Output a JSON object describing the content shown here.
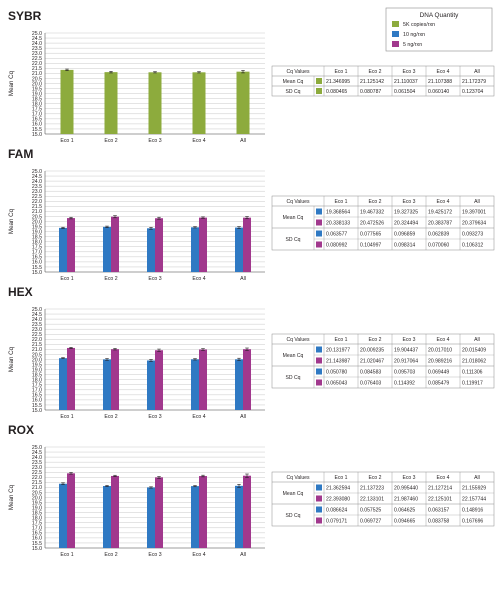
{
  "colors": {
    "sybr": "#8dab3d",
    "ng10": "#2f79c3",
    "ng5": "#a1388d",
    "grid": "#c9c9c9",
    "border": "#8c8c8c"
  },
  "legend": {
    "title": "DNA Quantity",
    "items": [
      {
        "label": "5K copies/rxn",
        "color": "#8dab3d"
      },
      {
        "label": "10 ng/rxn",
        "color": "#2f79c3"
      },
      {
        "label": "5 ng/rxn",
        "color": "#a1388d"
      }
    ]
  },
  "chart_data": [
    {
      "type": "bar",
      "title": "SYBR",
      "ylabel": "Mean Cq",
      "xlabel": "",
      "categories": [
        "Eco 1",
        "Eco 2",
        "Eco 3",
        "Eco 4",
        "All"
      ],
      "ylim": [
        15.0,
        25.0
      ],
      "yticks": [
        "15.0",
        "15.5",
        "16.0",
        "16.5",
        "17.0",
        "17.5",
        "18.0",
        "18.5",
        "19.0",
        "19.5",
        "20.0",
        "20.5",
        "21.0",
        "21.5",
        "22.0",
        "22.5",
        "23.0",
        "23.5",
        "24.0",
        "24.5",
        "25.0"
      ],
      "grid": true,
      "series": [
        {
          "name": "5K copies/rxn",
          "color": "#8dab3d",
          "values": [
            21.346995,
            21.125142,
            21.110037,
            21.107388,
            21.172379
          ],
          "errors": [
            0.080465,
            0.080787,
            0.061504,
            0.06014,
            0.123704
          ]
        }
      ],
      "table": {
        "headers": [
          "Cq Values",
          "Eco 1",
          "Eco 2",
          "Eco 3",
          "Eco 4",
          "All"
        ],
        "groups": [
          {
            "label": "Mean Cq",
            "rows": [
              {
                "color": "#8dab3d",
                "cells": [
                  "21.346995",
                  "21.125142",
                  "21.110037",
                  "21.107388",
                  "21.172379"
                ]
              }
            ]
          },
          {
            "label": "SD Cq",
            "rows": [
              {
                "color": "#8dab3d",
                "cells": [
                  "0.080465",
                  "0.080787",
                  "0.061504",
                  "0.060140",
                  "0.123704"
                ]
              }
            ]
          }
        ]
      }
    },
    {
      "type": "bar",
      "title": "FAM",
      "ylabel": "Mean Cq",
      "xlabel": "",
      "categories": [
        "Eco 1",
        "Eco 2",
        "Eco 3",
        "Eco 4",
        "All"
      ],
      "ylim": [
        15.0,
        25.0
      ],
      "yticks": [
        "15.0",
        "15.5",
        "16.0",
        "16.5",
        "17.0",
        "17.5",
        "18.0",
        "18.5",
        "19.0",
        "19.5",
        "20.0",
        "20.5",
        "21.0",
        "21.5",
        "22.0",
        "22.5",
        "23.0",
        "23.5",
        "24.0",
        "24.5",
        "25.0"
      ],
      "grid": true,
      "series": [
        {
          "name": "10 ng/rxn",
          "color": "#2f79c3",
          "values": [
            19.368564,
            19.467332,
            19.327325,
            19.425172,
            19.397001
          ],
          "errors": [
            0.063577,
            0.077565,
            0.096859,
            0.062839,
            0.093273
          ]
        },
        {
          "name": "5 ng/rxn",
          "color": "#a1388d",
          "values": [
            20.338133,
            20.472526,
            20.324494,
            20.383787,
            20.379634
          ],
          "errors": [
            0.080992,
            0.104997,
            0.098314,
            0.07006,
            0.106312
          ]
        }
      ],
      "table": {
        "headers": [
          "Cq Values",
          "Eco 1",
          "Eco 2",
          "Eco 3",
          "Eco 4",
          "All"
        ],
        "groups": [
          {
            "label": "Mean Cq",
            "rows": [
              {
                "color": "#2f79c3",
                "cells": [
                  "19.368564",
                  "19.467332",
                  "19.327325",
                  "19.425172",
                  "19.397001"
                ]
              },
              {
                "color": "#a1388d",
                "cells": [
                  "20.338133",
                  "20.472526",
                  "20.324494",
                  "20.383787",
                  "20.379634"
                ]
              }
            ]
          },
          {
            "label": "SD Cq",
            "rows": [
              {
                "color": "#2f79c3",
                "cells": [
                  "0.063577",
                  "0.077565",
                  "0.096859",
                  "0.062839",
                  "0.093273"
                ]
              },
              {
                "color": "#a1388d",
                "cells": [
                  "0.080992",
                  "0.104997",
                  "0.098314",
                  "0.070060",
                  "0.106312"
                ]
              }
            ]
          }
        ]
      }
    },
    {
      "type": "bar",
      "title": "HEX",
      "ylabel": "Mean Cq",
      "xlabel": "",
      "categories": [
        "Eco 1",
        "Eco 2",
        "Eco 3",
        "Eco 4",
        "All"
      ],
      "ylim": [
        15.0,
        25.0
      ],
      "yticks": [
        "15.0",
        "15.5",
        "16.0",
        "16.5",
        "17.0",
        "17.5",
        "18.0",
        "18.5",
        "19.0",
        "19.5",
        "20.0",
        "20.5",
        "21.0",
        "21.5",
        "22.0",
        "22.5",
        "23.0",
        "23.5",
        "24.0",
        "24.5",
        "25.0"
      ],
      "grid": true,
      "series": [
        {
          "name": "10 ng/rxn",
          "color": "#2f79c3",
          "values": [
            20.131977,
            20.009235,
            19.904437,
            20.01701,
            20.015409
          ],
          "errors": [
            0.05078,
            0.084583,
            0.095703,
            0.069449,
            0.111306
          ]
        },
        {
          "name": "5 ng/rxn",
          "color": "#a1388d",
          "values": [
            21.143987,
            21.020467,
            20.917064,
            20.989216,
            21.018062
          ],
          "errors": [
            0.065043,
            0.076403,
            0.114392,
            0.085479,
            0.119917
          ]
        }
      ],
      "table": {
        "headers": [
          "Cq Values",
          "Eco 1",
          "Eco 2",
          "Eco 3",
          "Eco 4",
          "All"
        ],
        "groups": [
          {
            "label": "Mean Cq",
            "rows": [
              {
                "color": "#2f79c3",
                "cells": [
                  "20.131977",
                  "20.009235",
                  "19.904437",
                  "20.017010",
                  "20.015409"
                ]
              },
              {
                "color": "#a1388d",
                "cells": [
                  "21.143987",
                  "21.020467",
                  "20.917064",
                  "20.989216",
                  "21.018062"
                ]
              }
            ]
          },
          {
            "label": "SD Cq",
            "rows": [
              {
                "color": "#2f79c3",
                "cells": [
                  "0.050780",
                  "0.084583",
                  "0.095703",
                  "0.069449",
                  "0.111306"
                ]
              },
              {
                "color": "#a1388d",
                "cells": [
                  "0.065043",
                  "0.076403",
                  "0.114392",
                  "0.085479",
                  "0.119917"
                ]
              }
            ]
          }
        ]
      }
    },
    {
      "type": "bar",
      "title": "ROX",
      "ylabel": "Mean Cq",
      "xlabel": "",
      "categories": [
        "Eco 1",
        "Eco 2",
        "Eco 3",
        "Eco 4",
        "All"
      ],
      "ylim": [
        15.0,
        25.0
      ],
      "yticks": [
        "15.0",
        "15.5",
        "16.0",
        "16.5",
        "17.0",
        "17.5",
        "18.0",
        "18.5",
        "19.0",
        "19.5",
        "20.0",
        "20.5",
        "21.0",
        "21.5",
        "22.0",
        "22.5",
        "23.0",
        "23.5",
        "24.0",
        "24.5",
        "25.0"
      ],
      "grid": true,
      "series": [
        {
          "name": "10 ng/rxn",
          "color": "#2f79c3",
          "values": [
            21.362594,
            21.137223,
            20.99544,
            21.127214,
            21.155929
          ],
          "errors": [
            0.086624,
            0.057525,
            0.064625,
            0.063157,
            0.148916
          ]
        },
        {
          "name": "5 ng/rxn",
          "color": "#a1388d",
          "values": [
            22.39308,
            22.133101,
            21.98746,
            22.125101,
            22.157744
          ],
          "errors": [
            0.079171,
            0.069727,
            0.094665,
            0.083758,
            0.167696
          ]
        }
      ],
      "table": {
        "headers": [
          "Cq Values",
          "Eco 1",
          "Eco 2",
          "Eco 3",
          "Eco 4",
          "All"
        ],
        "groups": [
          {
            "label": "Mean Cq",
            "rows": [
              {
                "color": "#2f79c3",
                "cells": [
                  "21.362594",
                  "21.137223",
                  "20.995440",
                  "21.127214",
                  "21.155929"
                ]
              },
              {
                "color": "#a1388d",
                "cells": [
                  "22.393080",
                  "22.133101",
                  "21.987460",
                  "22.125101",
                  "22.157744"
                ]
              }
            ]
          },
          {
            "label": "SD Cq",
            "rows": [
              {
                "color": "#2f79c3",
                "cells": [
                  "0.086624",
                  "0.057525",
                  "0.064625",
                  "0.063157",
                  "0.148916"
                ]
              },
              {
                "color": "#a1388d",
                "cells": [
                  "0.079171",
                  "0.069727",
                  "0.094665",
                  "0.083758",
                  "0.167696"
                ]
              }
            ]
          }
        ]
      }
    }
  ]
}
